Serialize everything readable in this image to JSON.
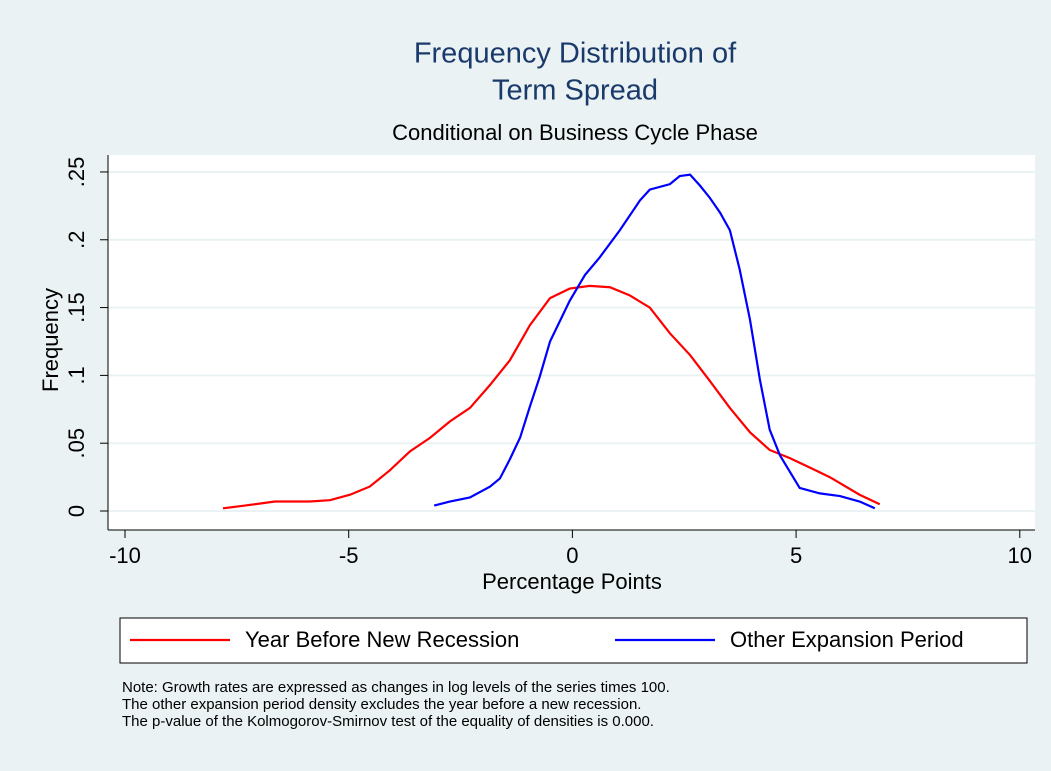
{
  "chart_data": {
    "type": "line",
    "title": [
      "Frequency Distribution of",
      "Term Spread"
    ],
    "subtitle": "Conditional on Business Cycle Phase",
    "xlabel": "Percentage Points",
    "ylabel": "Frequency",
    "xlim": [
      -10.38,
      10.34
    ],
    "ylim": [
      -0.014,
      0.2625
    ],
    "xticks": [
      -10,
      -5,
      0,
      5,
      10
    ],
    "yticks": [
      0,
      {
        "value": 0.05,
        "label": ".05"
      },
      {
        "value": 0.1,
        "label": ".1"
      },
      {
        "value": 0.15,
        "label": ".15"
      },
      {
        "value": 0.2,
        "label": ".2"
      },
      {
        "value": 0.25,
        "label": ".25"
      }
    ],
    "grid": true,
    "series": [
      {
        "name": "Year Before New Recession",
        "color": "#ff0000",
        "x": [
          -7.81,
          -7.32,
          -6.65,
          -5.87,
          -5.42,
          -4.97,
          -4.53,
          -4.08,
          -3.63,
          -3.18,
          -2.74,
          -2.29,
          -1.84,
          -1.4,
          -0.95,
          -0.5,
          -0.06,
          0.39,
          0.84,
          1.28,
          1.73,
          2.18,
          2.63,
          3.07,
          3.52,
          3.97,
          4.41,
          4.86,
          5.31,
          5.75,
          6.42,
          6.87
        ],
        "values": [
          0.002,
          0.004,
          0.007,
          0.007,
          0.008,
          0.012,
          0.018,
          0.03,
          0.044,
          0.054,
          0.066,
          0.076,
          0.093,
          0.111,
          0.137,
          0.157,
          0.164,
          0.166,
          0.165,
          0.159,
          0.15,
          0.131,
          0.115,
          0.096,
          0.076,
          0.058,
          0.045,
          0.039,
          0.032,
          0.025,
          0.012,
          0.005
        ]
      },
      {
        "name": "Other Expansion Period",
        "color": "#0000ff",
        "x": [
          -3.09,
          -2.74,
          -2.29,
          -1.84,
          -1.62,
          -1.4,
          -1.17,
          -0.95,
          -0.73,
          -0.5,
          -0.06,
          0.28,
          0.61,
          1.06,
          1.51,
          1.73,
          2.18,
          2.4,
          2.63,
          2.85,
          3.07,
          3.3,
          3.52,
          3.74,
          3.97,
          4.19,
          4.41,
          4.64,
          4.86,
          5.08,
          5.53,
          5.98,
          6.42,
          6.76
        ],
        "values": [
          0.004,
          0.007,
          0.01,
          0.018,
          0.024,
          0.038,
          0.054,
          0.077,
          0.099,
          0.125,
          0.155,
          0.174,
          0.187,
          0.207,
          0.229,
          0.237,
          0.241,
          0.247,
          0.248,
          0.24,
          0.231,
          0.22,
          0.207,
          0.178,
          0.141,
          0.097,
          0.06,
          0.041,
          0.029,
          0.017,
          0.013,
          0.011,
          0.007,
          0.002
        ]
      }
    ],
    "notes": [
      "Note: Growth rates are expressed as changes in log levels of the series times 100.",
      "The other expansion period density excludes the year before a new recession.",
      "The p-value of the Kolmogorov-Smirnov test of the equality of densities is 0.000."
    ]
  }
}
